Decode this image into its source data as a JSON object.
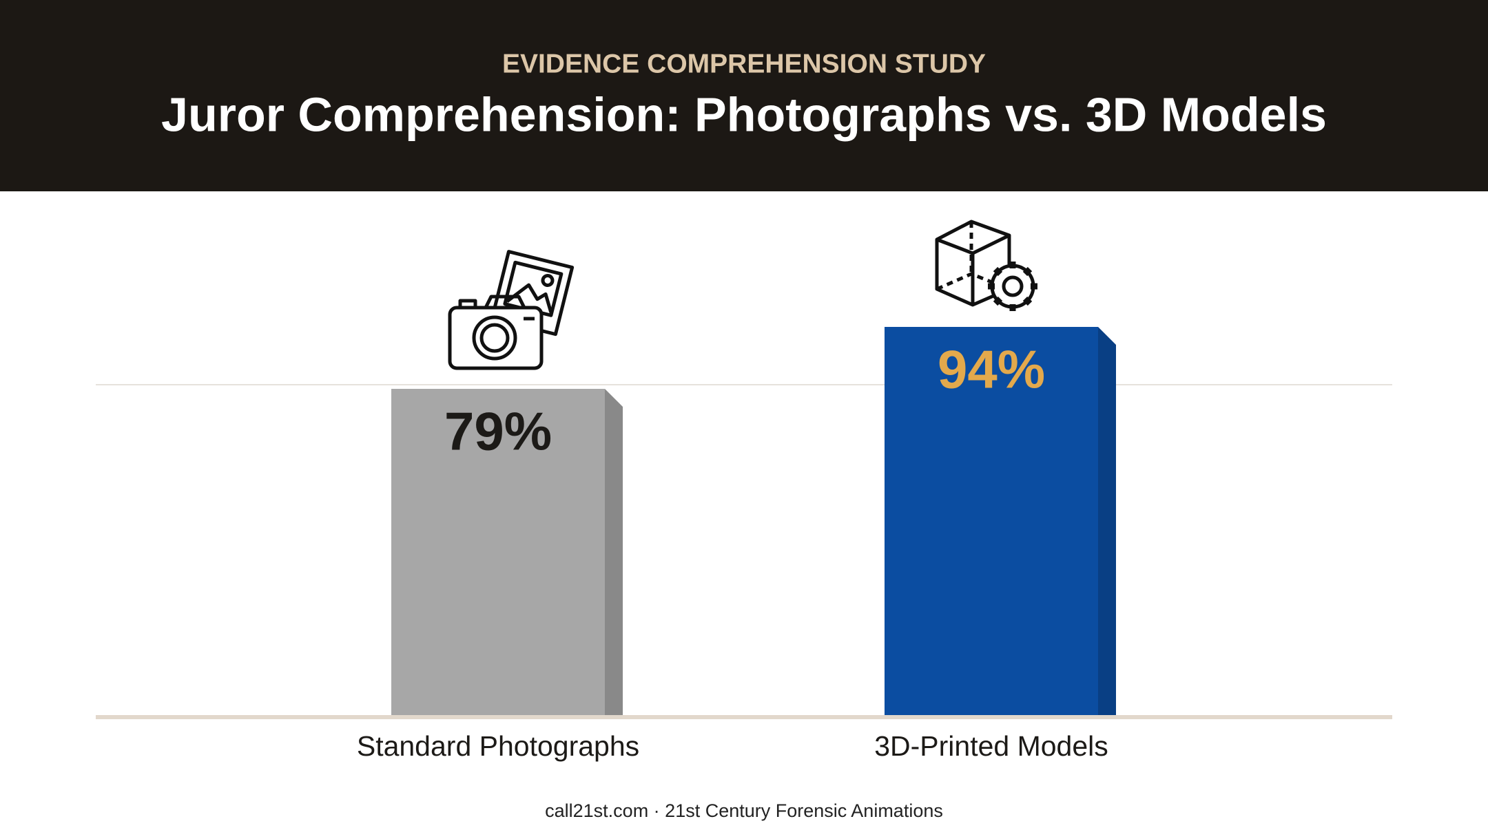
{
  "chart_data": {
    "type": "bar",
    "subtitle": "EVIDENCE COMPREHENSION STUDY",
    "title": "Juror Comprehension: Photographs vs. 3D Models",
    "categories": [
      "Standard Photographs",
      "3D-Printed Models"
    ],
    "values": [
      79,
      94
    ],
    "value_labels": [
      "79%",
      "94%"
    ],
    "colors": [
      "#a7a7a7",
      "#0b4da1"
    ],
    "label_colors": [
      "#1c1a17",
      "#e3a94c"
    ],
    "ylim": [
      0,
      100
    ],
    "yticks": [
      0,
      80
    ],
    "show_tick_labels": false,
    "grid": true,
    "footer": "call21st.com · 21st Century Forensic Animations"
  }
}
